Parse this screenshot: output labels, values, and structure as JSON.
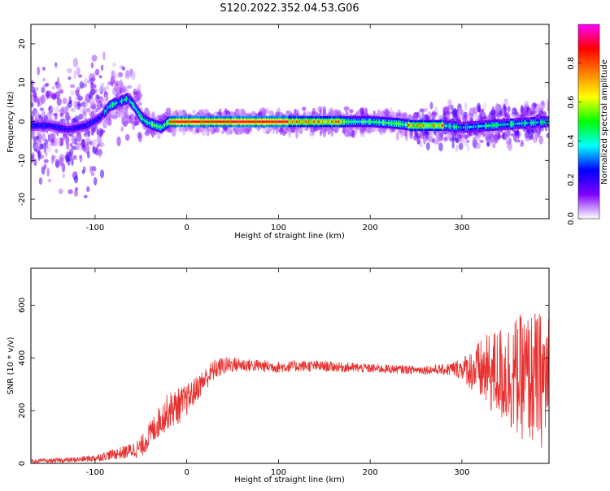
{
  "figure": {
    "title": "S120.2022.352.04.53.G06"
  },
  "chart_data": [
    {
      "type": "heatmap",
      "name": "spectrogram",
      "xlabel": "Height of straight line (km)",
      "ylabel": "Frequency (Hz)",
      "xlim": [
        -170,
        395
      ],
      "ylim": [
        -25,
        25
      ],
      "xticks": [
        -100,
        0,
        100,
        200,
        300
      ],
      "yticks": [
        -20,
        -10,
        0,
        10,
        20
      ],
      "colorbar": {
        "label": "Normalized spectral amplitude",
        "range": [
          0.0,
          1.0
        ],
        "ticks": [
          0.0,
          0.2,
          0.4,
          0.6,
          0.8
        ],
        "colormap": [
          "#ffffff",
          "#7f00ff",
          "#0000ff",
          "#00ffff",
          "#00ff00",
          "#ffff00",
          "#ff8000",
          "#ff0000",
          "#ff00ff"
        ]
      },
      "ridge": {
        "x": [
          -170,
          -150,
          -130,
          -110,
          -95,
          -85,
          -75,
          -65,
          -58,
          -50,
          -45,
          -35,
          -28,
          -20,
          0,
          50,
          100,
          150,
          200,
          230,
          245,
          260,
          280,
          300,
          330,
          360,
          395
        ],
        "y": [
          -1,
          -1,
          -2,
          -1,
          1,
          4,
          5,
          6,
          4,
          1,
          0,
          -1,
          -1.5,
          0,
          0,
          0,
          0,
          0,
          0,
          -0.5,
          -1,
          -1,
          -1,
          -1.5,
          -1,
          -0.5,
          0
        ]
      },
      "grid": false
    },
    {
      "type": "line",
      "name": "snr",
      "xlabel": "Height of straight line (km)",
      "ylabel": "SNR (10 * v/v)",
      "xlim": [
        -170,
        395
      ],
      "ylim": [
        0,
        740
      ],
      "xticks": [
        -100,
        0,
        100,
        200,
        300
      ],
      "yticks": [
        0,
        200,
        400,
        600
      ],
      "color": "#e8302e",
      "envelope": {
        "x": [
          -170,
          -150,
          -120,
          -100,
          -80,
          -70,
          -60,
          -50,
          -40,
          -30,
          -20,
          -10,
          0,
          10,
          20,
          30,
          40,
          50,
          70,
          100,
          130,
          150,
          200,
          250,
          280,
          300,
          320,
          340,
          360,
          380,
          395
        ],
        "mean": [
          8,
          10,
          14,
          20,
          35,
          40,
          50,
          60,
          110,
          160,
          200,
          215,
          240,
          280,
          320,
          355,
          370,
          375,
          372,
          365,
          370,
          368,
          360,
          355,
          355,
          360,
          350,
          340,
          330,
          320,
          310
        ],
        "spread": [
          6,
          8,
          10,
          14,
          20,
          25,
          30,
          40,
          50,
          60,
          70,
          70,
          60,
          50,
          45,
          40,
          35,
          30,
          25,
          22,
          22,
          20,
          18,
          16,
          20,
          40,
          120,
          180,
          230,
          260,
          260
        ]
      },
      "grid": false
    }
  ]
}
